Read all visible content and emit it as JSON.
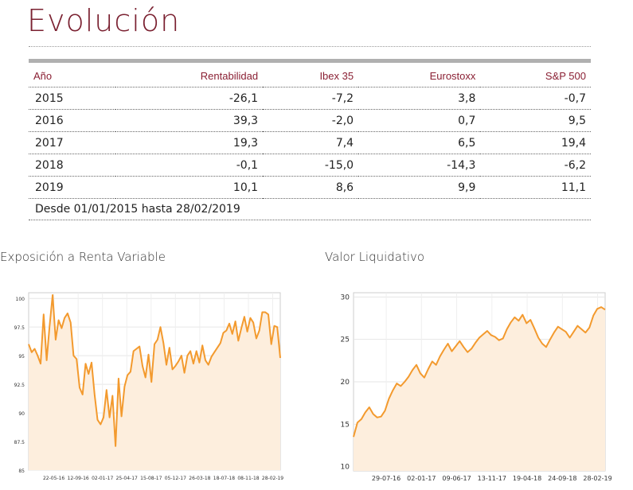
{
  "page": {
    "title": "Evolución"
  },
  "table": {
    "headers": [
      "Año",
      "Rentabilidad",
      "Ibex 35",
      "Eurostoxx",
      "S&P 500"
    ],
    "rows": [
      [
        "2015",
        "-26,1",
        "-7,2",
        "3,8",
        "-0,7"
      ],
      [
        "2016",
        "39,3",
        "-2,0",
        "0,7",
        "9,5"
      ],
      [
        "2017",
        "19,3",
        "7,4",
        "6,5",
        "19,4"
      ],
      [
        "2018",
        "-0,1",
        "-15,0",
        "-14,3",
        "-6,2"
      ],
      [
        "2019",
        "10,1",
        "8,6",
        "9,9",
        "11,1"
      ]
    ],
    "note": "Desde 01/01/2015 hasta 28/02/2019"
  },
  "colors": {
    "accent": "#8a1f33",
    "line": "#f39a2e",
    "fill": "#fdeedd"
  },
  "chart_data": [
    {
      "type": "area",
      "title": "Exposición a Renta Variable",
      "ylim": [
        85,
        100.5
      ],
      "yticks": [
        "100",
        "97.5",
        "95",
        "92.5",
        "90",
        "87.5",
        "85"
      ],
      "ytick_values": [
        100,
        97.5,
        95,
        92.5,
        90,
        87.5,
        85
      ],
      "xticks": [
        "22-05-16",
        "12-09-16",
        "02-01-17",
        "25-04-17",
        "15-08-17",
        "05-12-17",
        "26-03-18",
        "18-07-18",
        "08-11-18",
        "28-02-19"
      ],
      "grid": true,
      "values": [
        96.0,
        95.3,
        95.6,
        95.0,
        94.3,
        98.6,
        94.6,
        97.6,
        100.3,
        96.4,
        98.1,
        97.4,
        98.3,
        98.7,
        97.9,
        95.0,
        94.7,
        92.2,
        91.6,
        94.3,
        93.4,
        94.4,
        91.6,
        89.4,
        89.0,
        89.6,
        92.0,
        89.6,
        91.5,
        87.1,
        93.0,
        89.7,
        92.3,
        93.3,
        93.6,
        95.4,
        95.6,
        95.8,
        94.1,
        93.1,
        95.1,
        92.7,
        96.0,
        96.4,
        97.5,
        96.1,
        94.2,
        95.7,
        93.8,
        94.1,
        94.5,
        95.0,
        93.5,
        95.0,
        95.4,
        94.3,
        95.4,
        94.4,
        95.9,
        94.6,
        94.2,
        94.9,
        95.3,
        95.7,
        96.1,
        97.0,
        97.2,
        97.8,
        96.9,
        98.0,
        96.3,
        97.4,
        98.4,
        97.1,
        98.3,
        97.9,
        96.5,
        97.2,
        98.8,
        98.8,
        98.6,
        96.0,
        97.6,
        97.5,
        94.8
      ]
    },
    {
      "type": "area",
      "title": "Valor Liquidativo",
      "ylim": [
        9.5,
        30.5
      ],
      "yticks": [
        "30",
        "25",
        "20",
        "15",
        "10"
      ],
      "ytick_values": [
        30,
        25,
        20,
        15,
        10
      ],
      "xticks": [
        "29-07-16",
        "02-01-17",
        "09-06-17",
        "13-11-17",
        "19-04-18",
        "24-09-18",
        "28-02-19"
      ],
      "grid": true,
      "values": [
        13.5,
        15.2,
        15.6,
        16.4,
        17.0,
        16.2,
        15.8,
        15.9,
        16.6,
        18.0,
        19.0,
        19.8,
        19.5,
        20.0,
        20.6,
        21.4,
        22.0,
        21.0,
        20.5,
        21.5,
        22.4,
        22.0,
        23.0,
        23.8,
        24.5,
        23.6,
        24.2,
        24.8,
        24.1,
        23.5,
        23.9,
        24.6,
        25.2,
        25.6,
        26.0,
        25.5,
        25.3,
        24.9,
        25.1,
        26.2,
        27.0,
        27.6,
        27.2,
        27.9,
        26.9,
        27.3,
        26.3,
        25.2,
        24.5,
        24.1,
        25.0,
        25.8,
        26.5,
        26.2,
        25.9,
        25.2,
        25.9,
        26.6,
        26.2,
        25.8,
        26.4,
        27.8,
        28.6,
        28.8,
        28.5
      ]
    }
  ]
}
